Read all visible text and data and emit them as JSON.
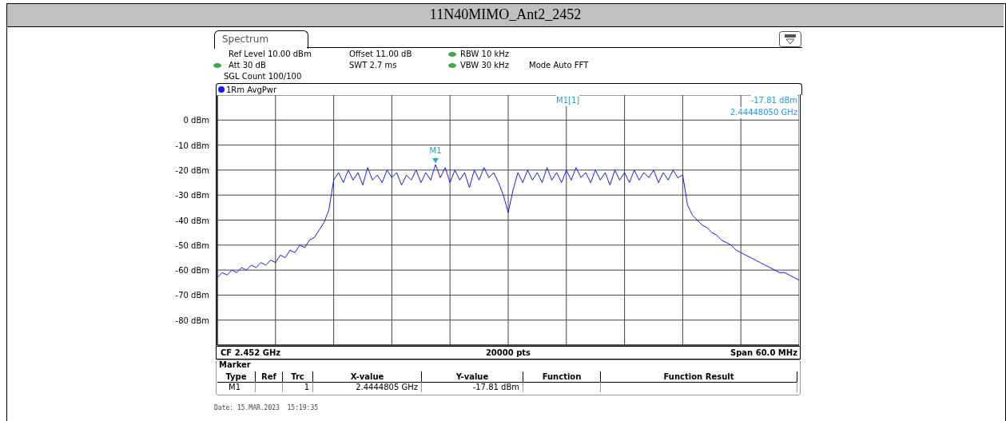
{
  "chart_data": {
    "type": "line",
    "title": "11N40MIMO_Ant2_2452",
    "categories": [
      null,
      null,
      null,
      null,
      null,
      null,
      null,
      null,
      null,
      null,
      null,
      null,
      null,
      null,
      null,
      null,
      null,
      null,
      null,
      null,
      null,
      null,
      null,
      null,
      null,
      null,
      null,
      null,
      null,
      null,
      null,
      null,
      null,
      null,
      null,
      null,
      null,
      null,
      null,
      null,
      null,
      null,
      null,
      null,
      null,
      null,
      null,
      null,
      null,
      null,
      null,
      null,
      null,
      null,
      null,
      null,
      null,
      null,
      null,
      null,
      null,
      null,
      null,
      null,
      null,
      null,
      null,
      null,
      null,
      null,
      null,
      null,
      null,
      null,
      null,
      null,
      null,
      null,
      null,
      null,
      null,
      null,
      null,
      null,
      null,
      null,
      null,
      null,
      null,
      null,
      null,
      null,
      null,
      null,
      null,
      null,
      null,
      null,
      null,
      null,
      null,
      null,
      null,
      null,
      null,
      null,
      null,
      null,
      null,
      null,
      null,
      null,
      null,
      null,
      null,
      null,
      null,
      null,
      null,
      null,
      null
    ],
    "series": [
      {
        "name": "1Rm AvgPwr",
        "color": "#1a1aff",
        "values": [
          -63,
          -61,
          -62,
          -60,
          -61,
          -59,
          -60,
          -58,
          -59,
          -57,
          -58,
          -56,
          -57,
          -54,
          -55,
          -52,
          -53,
          -50,
          -51,
          -48,
          -47,
          -44,
          -41,
          -36,
          -24,
          -21,
          -25,
          -20,
          -24,
          -21,
          -26,
          -19,
          -24,
          -22,
          -25,
          -20,
          -23,
          -21,
          -26,
          -22,
          -24,
          -20,
          -25,
          -21,
          -24,
          -17.81,
          -23,
          -19,
          -25,
          -20,
          -24,
          -21,
          -27,
          -20,
          -24,
          -19,
          -23,
          -21,
          -25,
          -30,
          -37,
          -28,
          -21,
          -25,
          -20,
          -24,
          -21,
          -25,
          -19,
          -24,
          -21,
          -25,
          -20,
          -24,
          -19,
          -23,
          -21,
          -25,
          -20,
          -24,
          -21,
          -26,
          -20,
          -24,
          -21,
          -25,
          -20,
          -24,
          -21,
          -23,
          -20,
          -25,
          -21,
          -24,
          -20,
          -23,
          -22,
          -34,
          -38,
          -40,
          -42,
          -43,
          -45,
          -46,
          -48,
          -49,
          -50,
          -52,
          -53,
          -54,
          -55,
          -56,
          -57,
          -58,
          -59,
          -60,
          -61,
          -61,
          -62,
          -63,
          -64
        ]
      }
    ],
    "ylim": [
      -90,
      10
    ],
    "yticks": [
      {
        "value": -90,
        "label": null
      },
      {
        "value": -80,
        "label": "-80 dBm"
      },
      {
        "value": -70,
        "label": "-70 dBm"
      },
      {
        "value": -60,
        "label": "-60 dBm"
      },
      {
        "value": -50,
        "label": "-50 dBm"
      },
      {
        "value": -40,
        "label": "-40 dBm"
      },
      {
        "value": -30,
        "label": "-30 dBm"
      },
      {
        "value": -20,
        "label": "-20 dBm"
      },
      {
        "value": -10,
        "label": "-10 dBm"
      },
      {
        "value": 0,
        "label": "0 dBm"
      },
      {
        "value": 10,
        "label": null
      }
    ],
    "tick_labels": "y",
    "grid": true,
    "legend": "top left",
    "annotations": [
      "Spectrum",
      "Ref Level 10.00 dBm",
      "Offset 11.00 dB",
      "RBW 10 kHz",
      "Att 30 dB",
      "SWT 2.7 ms",
      "VBW 30 kHz",
      "Mode Auto FFT",
      "SGL Count 100/100",
      "M1[1]",
      "-17.81 dBm",
      "2.44448050 GHz",
      {
        "text": "M1",
        "y": -17.81
      },
      "CF 2.452 GHz",
      "20000 pts",
      "Span 60.0 MHz",
      "Marker",
      "Type",
      "Ref",
      "Trc",
      "X-value",
      "Y-value",
      "Function",
      "Function Result",
      "M1",
      "1",
      "2.4444805 GHz",
      "-17.81 dBm",
      "Date: 15.MAR.2023  15:19:35"
    ]
  }
}
